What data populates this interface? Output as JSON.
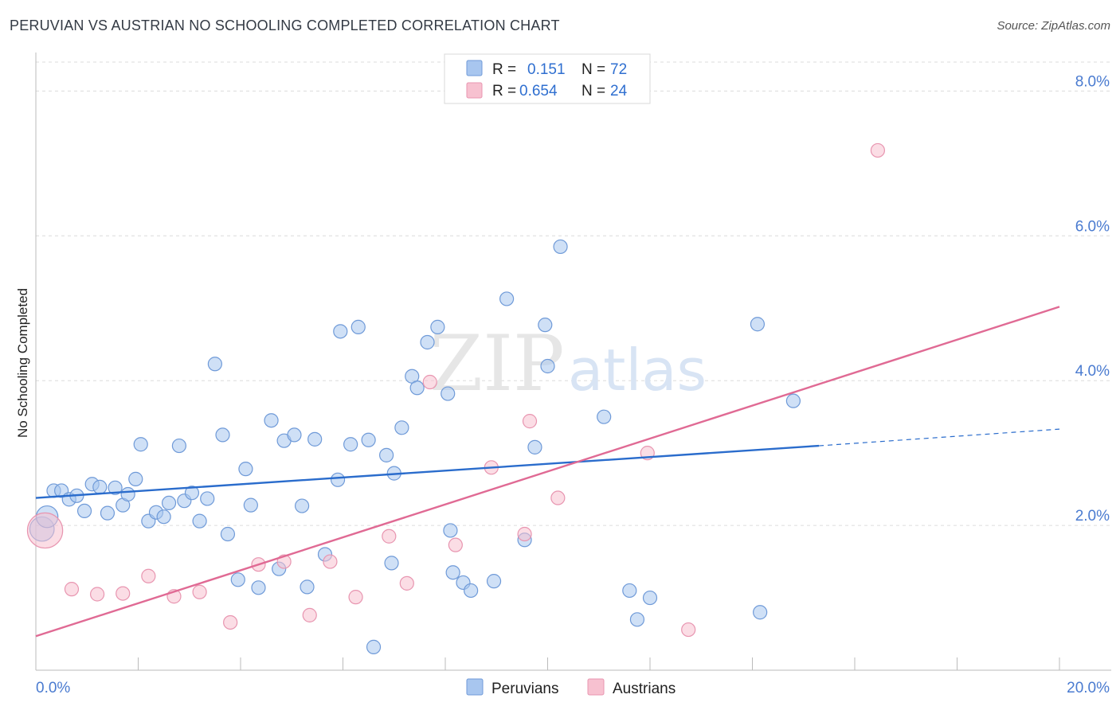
{
  "title": "PERUVIAN VS AUSTRIAN NO SCHOOLING COMPLETED CORRELATION CHART",
  "source": "Source: ZipAtlas.com",
  "watermark": {
    "part1": "ZIP",
    "part2": "atlas"
  },
  "colors": {
    "peruvian_fill": "#a8c6ef",
    "peruvian_stroke": "#6f9ad8",
    "peruvian_line": "#2a6ccc",
    "austrian_fill": "#f7c1d0",
    "austrian_stroke": "#e895b0",
    "austrian_line": "#e06a94",
    "tick_text": "#4a7bd0",
    "grid": "#dcdcdc"
  },
  "legend": {
    "rows": [
      {
        "r_label": "R =",
        "r_value": "0.151",
        "n_label": "N =",
        "n_value": "72"
      },
      {
        "r_label": "R =",
        "r_value": "0.654",
        "n_label": "N =",
        "n_value": "24"
      }
    ]
  },
  "chart_data": {
    "type": "scatter",
    "title": "PERUVIAN VS AUSTRIAN NO SCHOOLING COMPLETED CORRELATION CHART",
    "xlabel": "",
    "ylabel": "No Schooling Completed",
    "xlim": [
      0,
      20
    ],
    "ylim": [
      0,
      8.4
    ],
    "x_tick_labels": {
      "left": "0.0%",
      "right": "20.0%"
    },
    "y_ticks": [
      {
        "value": 2,
        "label": "2.0%"
      },
      {
        "value": 4,
        "label": "4.0%"
      },
      {
        "value": 6,
        "label": "6.0%"
      },
      {
        "value": 8,
        "label": "8.0%"
      }
    ],
    "series": [
      {
        "name": "Peruvians",
        "r": 0.151,
        "n": 72,
        "trend": {
          "x0": 0,
          "y0": 2.38,
          "x1": 15.3,
          "y1": 3.1,
          "dash_to_x": 20,
          "dash_to_y": 3.33
        },
        "points": [
          [
            0.12,
            1.95,
            1.8
          ],
          [
            0.22,
            2.12,
            1.6
          ],
          [
            0.35,
            2.48,
            1
          ],
          [
            0.5,
            2.48,
            1
          ],
          [
            0.65,
            2.36,
            1
          ],
          [
            0.8,
            2.41,
            1
          ],
          [
            0.95,
            2.2,
            1
          ],
          [
            1.1,
            2.57,
            1
          ],
          [
            1.25,
            2.53,
            1
          ],
          [
            1.4,
            2.17,
            1
          ],
          [
            1.55,
            2.52,
            1
          ],
          [
            1.7,
            2.28,
            1
          ],
          [
            1.8,
            2.43,
            1
          ],
          [
            1.95,
            2.64,
            1
          ],
          [
            2.05,
            3.12,
            1
          ],
          [
            2.2,
            2.06,
            1
          ],
          [
            2.35,
            2.18,
            1
          ],
          [
            2.5,
            2.12,
            1
          ],
          [
            2.6,
            2.31,
            1
          ],
          [
            2.8,
            3.1,
            1
          ],
          [
            2.9,
            2.34,
            1
          ],
          [
            3.05,
            2.45,
            1
          ],
          [
            3.2,
            2.06,
            1
          ],
          [
            3.35,
            2.37,
            1
          ],
          [
            3.5,
            4.23,
            1
          ],
          [
            3.65,
            3.25,
            1
          ],
          [
            3.75,
            1.88,
            1
          ],
          [
            3.95,
            1.25,
            1
          ],
          [
            4.1,
            2.78,
            1
          ],
          [
            4.2,
            2.28,
            1
          ],
          [
            4.35,
            1.14,
            1
          ],
          [
            4.6,
            3.45,
            1
          ],
          [
            4.75,
            1.4,
            1
          ],
          [
            4.85,
            3.17,
            1
          ],
          [
            5.05,
            3.25,
            1
          ],
          [
            5.2,
            2.27,
            1
          ],
          [
            5.3,
            1.15,
            1
          ],
          [
            5.45,
            3.19,
            1
          ],
          [
            5.65,
            1.6,
            1
          ],
          [
            5.9,
            2.63,
            1
          ],
          [
            5.95,
            4.68,
            1
          ],
          [
            6.15,
            3.12,
            1
          ],
          [
            6.3,
            4.74,
            1
          ],
          [
            6.5,
            3.18,
            1
          ],
          [
            6.6,
            0.32,
            1
          ],
          [
            6.85,
            2.97,
            1
          ],
          [
            6.95,
            1.48,
            1
          ],
          [
            7.0,
            2.72,
            1
          ],
          [
            7.15,
            3.35,
            1
          ],
          [
            7.35,
            4.06,
            1
          ],
          [
            7.45,
            3.9,
            1
          ],
          [
            7.65,
            4.53,
            1
          ],
          [
            7.85,
            4.74,
            1
          ],
          [
            8.05,
            3.82,
            1
          ],
          [
            8.1,
            1.93,
            1
          ],
          [
            8.15,
            1.35,
            1
          ],
          [
            8.35,
            1.21,
            1
          ],
          [
            8.5,
            1.1,
            1
          ],
          [
            8.95,
            1.23,
            1
          ],
          [
            9.2,
            5.13,
            1
          ],
          [
            9.55,
            1.8,
            1
          ],
          [
            9.75,
            3.08,
            1
          ],
          [
            9.95,
            4.77,
            1
          ],
          [
            10.0,
            4.2,
            1
          ],
          [
            10.25,
            5.85,
            1
          ],
          [
            11.1,
            3.5,
            1
          ],
          [
            11.6,
            1.1,
            1
          ],
          [
            11.75,
            0.7,
            1
          ],
          [
            12.0,
            1.0,
            1
          ],
          [
            14.1,
            4.78,
            1
          ],
          [
            14.15,
            0.8,
            1
          ],
          [
            14.8,
            3.72,
            1
          ]
        ]
      },
      {
        "name": "Austrians",
        "r": 0.654,
        "n": 24,
        "trend": {
          "x0": 0,
          "y0": 0.47,
          "x1": 20,
          "y1": 5.02
        },
        "points": [
          [
            0.18,
            1.93,
            2.6
          ],
          [
            0.7,
            1.12,
            1
          ],
          [
            1.2,
            1.05,
            1
          ],
          [
            1.7,
            1.06,
            1
          ],
          [
            2.2,
            1.3,
            1
          ],
          [
            2.7,
            1.02,
            1
          ],
          [
            3.2,
            1.08,
            1
          ],
          [
            3.8,
            0.66,
            1
          ],
          [
            4.35,
            1.46,
            1
          ],
          [
            4.85,
            1.5,
            1
          ],
          [
            5.35,
            0.76,
            1
          ],
          [
            5.75,
            1.5,
            1
          ],
          [
            6.25,
            1.01,
            1
          ],
          [
            6.9,
            1.85,
            1
          ],
          [
            7.25,
            1.2,
            1
          ],
          [
            7.7,
            3.98,
            1
          ],
          [
            8.2,
            1.73,
            1
          ],
          [
            8.9,
            2.8,
            1
          ],
          [
            9.55,
            1.88,
            1
          ],
          [
            9.65,
            3.44,
            1
          ],
          [
            10.2,
            2.38,
            1
          ],
          [
            11.95,
            3.0,
            1
          ],
          [
            12.75,
            0.56,
            1
          ],
          [
            16.45,
            7.18,
            1
          ]
        ]
      }
    ]
  }
}
